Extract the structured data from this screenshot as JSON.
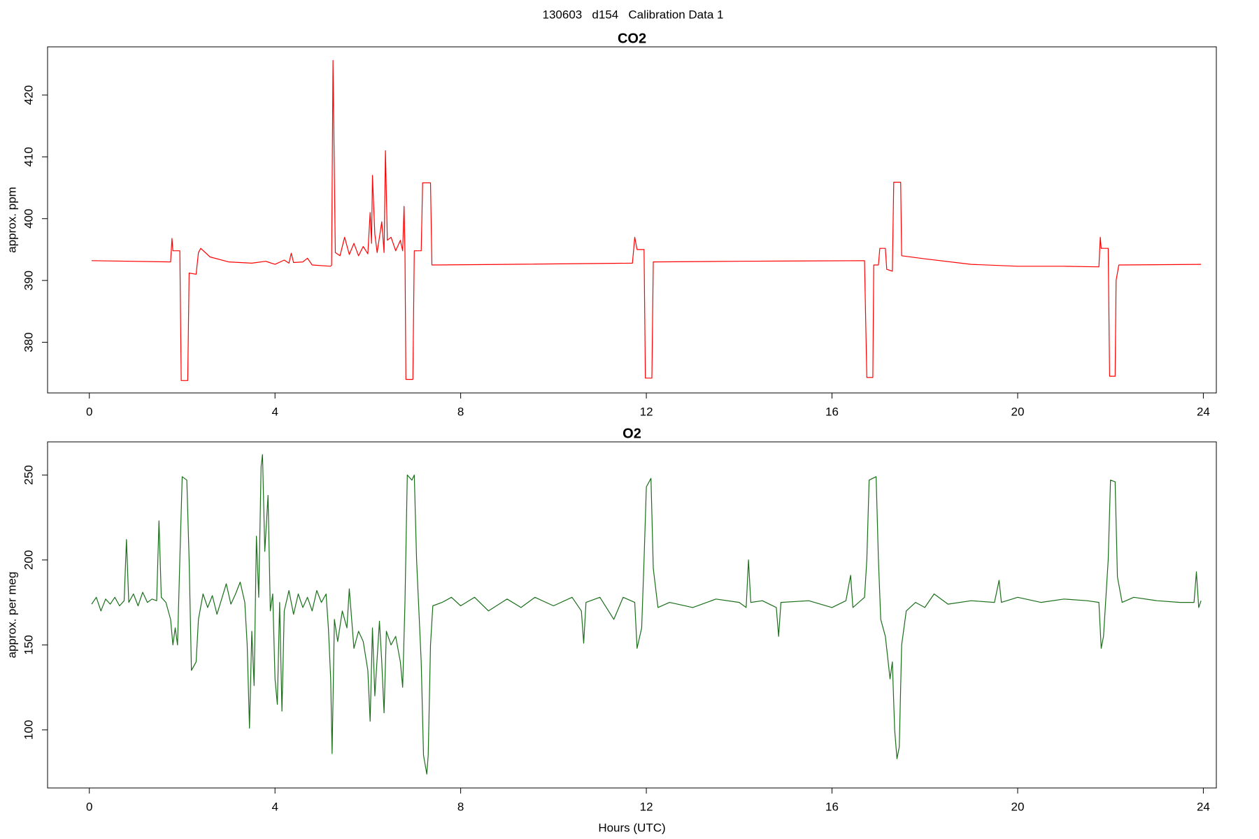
{
  "title": "130603   d154   Calibration Data 1",
  "chart_data": [
    {
      "type": "line",
      "title": "CO2",
      "ylabel": "approx. ppm",
      "color": "#ff0000",
      "xlim": [
        -0.9,
        24.28
      ],
      "ylim": [
        371.8,
        427.8
      ],
      "xticks": [
        0,
        4,
        8,
        12,
        16,
        20,
        24
      ],
      "yticks": [
        380,
        390,
        400,
        410,
        420
      ],
      "x": [
        0.05,
        1.75,
        1.78,
        1.8,
        1.95,
        1.98,
        2.12,
        2.15,
        2.3,
        2.35,
        2.4,
        2.6,
        3.0,
        3.5,
        3.8,
        4.0,
        4.2,
        4.3,
        4.35,
        4.4,
        4.6,
        4.7,
        4.8,
        5.2,
        5.22,
        5.25,
        5.3,
        5.4,
        5.5,
        5.6,
        5.7,
        5.8,
        5.9,
        6.0,
        6.05,
        6.08,
        6.1,
        6.15,
        6.2,
        6.3,
        6.35,
        6.38,
        6.42,
        6.5,
        6.6,
        6.7,
        6.75,
        6.78,
        6.8,
        6.82,
        6.97,
        7.0,
        7.15,
        7.18,
        7.35,
        7.38,
        9.0,
        11.7,
        11.75,
        11.8,
        11.95,
        11.98,
        12.12,
        12.15,
        14.0,
        16.7,
        16.75,
        16.88,
        16.9,
        17.0,
        17.03,
        17.15,
        17.18,
        17.3,
        17.33,
        17.48,
        17.5,
        18.0,
        19.0,
        20.0,
        21.0,
        21.75,
        21.78,
        21.8,
        21.95,
        21.98,
        22.1,
        22.12,
        22.18,
        23.95
      ],
      "values": [
        393.2,
        393.0,
        396.8,
        394.8,
        394.8,
        373.8,
        373.8,
        391.2,
        391.0,
        394.5,
        395.2,
        393.8,
        393.0,
        392.8,
        393.1,
        392.6,
        393.3,
        392.8,
        394.4,
        392.9,
        393.0,
        393.6,
        392.5,
        392.3,
        392.5,
        425.6,
        394.5,
        394.0,
        397.0,
        394.2,
        396.0,
        394.0,
        395.5,
        394.3,
        401.0,
        396.0,
        407.0,
        397.5,
        394.5,
        399.5,
        394.5,
        411.0,
        396.5,
        397.0,
        394.8,
        396.5,
        394.8,
        402.0,
        394.5,
        374.0,
        374.0,
        394.8,
        394.8,
        405.8,
        405.8,
        392.5,
        392.6,
        392.8,
        397.0,
        395.0,
        395.0,
        374.2,
        374.2,
        393.0,
        393.1,
        393.2,
        374.3,
        374.3,
        392.5,
        392.5,
        395.2,
        395.2,
        391.8,
        391.5,
        405.9,
        405.9,
        394.0,
        393.5,
        392.6,
        392.3,
        392.3,
        392.2,
        397.0,
        395.2,
        395.2,
        374.5,
        374.5,
        390.0,
        392.5,
        392.6
      ]
    },
    {
      "type": "line",
      "title": "O2",
      "ylabel": "approx. per meg",
      "xlabel": "Hours (UTC)",
      "color": "#1a6e1a",
      "xlim": [
        -0.9,
        24.28
      ],
      "ylim": [
        65.8,
        269.5
      ],
      "xticks": [
        0,
        4,
        8,
        12,
        16,
        20,
        24
      ],
      "yticks": [
        100,
        150,
        200,
        250
      ],
      "x": [
        0.05,
        0.15,
        0.25,
        0.35,
        0.45,
        0.55,
        0.65,
        0.75,
        0.8,
        0.85,
        0.95,
        1.05,
        1.15,
        1.25,
        1.35,
        1.45,
        1.5,
        1.55,
        1.65,
        1.75,
        1.8,
        1.85,
        1.9,
        1.95,
        2.0,
        2.1,
        2.15,
        2.2,
        2.3,
        2.35,
        2.45,
        2.55,
        2.65,
        2.75,
        2.85,
        2.95,
        3.05,
        3.15,
        3.25,
        3.35,
        3.4,
        3.45,
        3.5,
        3.55,
        3.6,
        3.65,
        3.7,
        3.73,
        3.78,
        3.85,
        3.9,
        3.95,
        4.0,
        4.05,
        4.1,
        4.15,
        4.2,
        4.3,
        4.4,
        4.5,
        4.6,
        4.7,
        4.8,
        4.9,
        5.0,
        5.1,
        5.15,
        5.2,
        5.23,
        5.28,
        5.35,
        5.45,
        5.55,
        5.6,
        5.7,
        5.8,
        5.9,
        6.0,
        6.05,
        6.1,
        6.15,
        6.25,
        6.3,
        6.35,
        6.4,
        6.5,
        6.6,
        6.7,
        6.75,
        6.8,
        6.85,
        6.95,
        7.0,
        7.05,
        7.1,
        7.15,
        7.2,
        7.27,
        7.3,
        7.35,
        7.4,
        7.6,
        7.8,
        8.0,
        8.3,
        8.6,
        9.0,
        9.3,
        9.6,
        10.0,
        10.4,
        10.6,
        10.65,
        10.7,
        11.0,
        11.3,
        11.5,
        11.75,
        11.8,
        11.9,
        11.95,
        12.0,
        12.1,
        12.15,
        12.25,
        12.5,
        13.0,
        13.5,
        14.0,
        14.15,
        14.2,
        14.25,
        14.5,
        14.8,
        14.85,
        14.9,
        15.5,
        16.0,
        16.3,
        16.4,
        16.45,
        16.7,
        16.75,
        16.8,
        16.95,
        17.0,
        17.05,
        17.15,
        17.25,
        17.3,
        17.35,
        17.4,
        17.45,
        17.5,
        17.6,
        17.8,
        18.0,
        18.2,
        18.5,
        19.0,
        19.5,
        19.6,
        19.65,
        20.0,
        20.5,
        21.0,
        21.5,
        21.75,
        21.8,
        21.85,
        21.95,
        22.0,
        22.1,
        22.15,
        22.25,
        22.5,
        23.0,
        23.5,
        23.8,
        23.85,
        23.9,
        23.95
      ],
      "values": [
        174,
        178,
        170,
        177,
        174,
        178,
        173,
        176,
        212,
        175,
        180,
        173,
        181,
        175,
        177,
        176,
        223,
        178,
        175,
        165,
        150,
        160,
        150,
        200,
        249,
        247,
        200,
        135,
        140,
        165,
        180,
        172,
        179,
        168,
        177,
        186,
        174,
        180,
        187,
        175,
        150,
        101,
        158,
        126,
        214,
        178,
        255,
        262,
        205,
        238,
        170,
        180,
        130,
        115,
        175,
        111,
        170,
        182,
        168,
        180,
        172,
        178,
        170,
        182,
        175,
        180,
        160,
        130,
        86,
        165,
        152,
        170,
        160,
        183,
        148,
        158,
        152,
        135,
        105,
        160,
        120,
        164,
        140,
        110,
        158,
        150,
        155,
        140,
        125,
        175,
        250,
        247,
        250,
        200,
        170,
        140,
        85,
        74,
        85,
        150,
        173,
        175,
        178,
        173,
        178,
        170,
        177,
        172,
        178,
        173,
        178,
        170,
        151,
        175,
        178,
        165,
        178,
        175,
        148,
        160,
        200,
        243,
        248,
        195,
        172,
        175,
        172,
        177,
        175,
        172,
        200,
        175,
        176,
        172,
        155,
        175,
        176,
        172,
        176,
        191,
        172,
        178,
        200,
        247,
        249,
        200,
        165,
        155,
        130,
        140,
        100,
        83,
        90,
        150,
        170,
        175,
        172,
        180,
        174,
        176,
        175,
        188,
        175,
        178,
        175,
        177,
        176,
        175,
        148,
        155,
        200,
        247,
        246,
        190,
        175,
        178,
        176,
        175,
        175,
        193,
        172,
        176
      ]
    }
  ]
}
